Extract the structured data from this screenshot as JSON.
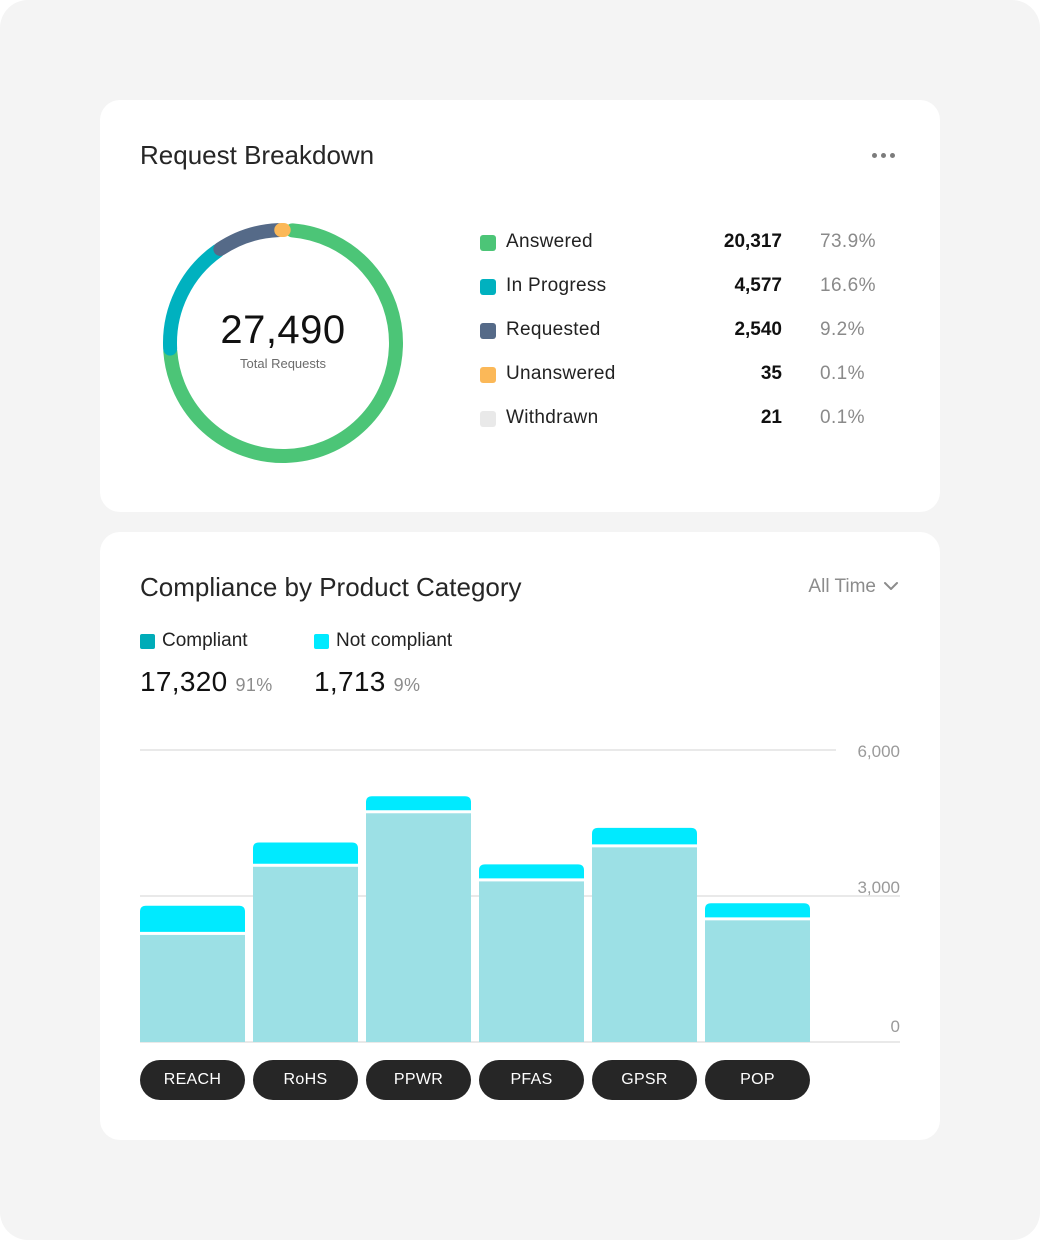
{
  "request_breakdown": {
    "title": "Request Breakdown",
    "menu_icon": "more-horizontal-icon",
    "total_value": "27,490",
    "total_label": "Total Requests",
    "items": [
      {
        "label": "Answered",
        "count": "20,317",
        "value": 20317,
        "pct": "73.9%",
        "color": "#4cc577"
      },
      {
        "label": "In Progress",
        "count": "4,577",
        "value": 4577,
        "pct": "16.6%",
        "color": "#00b1bf"
      },
      {
        "label": "Requested",
        "count": "2,540",
        "value": 2540,
        "pct": "9.2%",
        "color": "#556a88"
      },
      {
        "label": "Unanswered",
        "count": "35",
        "value": 35,
        "pct": "0.1%",
        "color": "#fbb858"
      },
      {
        "label": "Withdrawn",
        "count": "21",
        "value": 21,
        "pct": "0.1%",
        "color": "#e9e9e9"
      }
    ]
  },
  "compliance": {
    "title": "Compliance by Product Category",
    "range_label": "All Time",
    "range_icon": "chevron-down-icon",
    "metrics": [
      {
        "label": "Compliant",
        "value": "17,320",
        "pct": "91%",
        "color": "#00acb8"
      },
      {
        "label": "Not compliant",
        "value": "1,713",
        "pct": "9%",
        "color": "#00eaff"
      }
    ]
  },
  "chart_data": {
    "type": "bar",
    "stacked": true,
    "categories": [
      "REACH",
      "RoHS",
      "PPWR",
      "PFAS",
      "GPSR",
      "POP"
    ],
    "series": [
      {
        "name": "Compliant",
        "values": [
          2200,
          3600,
          4700,
          3300,
          4000,
          2500
        ],
        "color": "#9ce0e5"
      },
      {
        "name": "Not compliant",
        "values": [
          600,
          500,
          350,
          350,
          400,
          350
        ],
        "color": "#00eaff"
      }
    ],
    "yticks": [
      "6,000",
      "3,000",
      "0"
    ],
    "ylim": [
      0,
      6000
    ],
    "grid": true
  }
}
